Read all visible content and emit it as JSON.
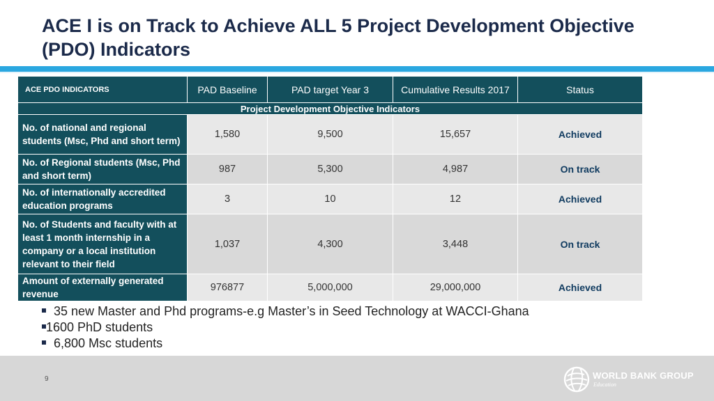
{
  "slide": {
    "title": "ACE I is on Track to Achieve ALL 5 Project Development Objective (PDO) Indicators",
    "page_number": "9"
  },
  "table": {
    "headers": [
      "ACE PDO INDICATORS",
      "PAD Baseline",
      "PAD target Year 3",
      "Cumulative Results 2017",
      "Status"
    ],
    "section_label": "Project Development Objective Indicators",
    "rows": [
      {
        "indicator": "No. of national and regional students (Msc, Phd and short term)",
        "baseline": "1,580",
        "target": "9,500",
        "cumulative": "15,657",
        "status": "Achieved"
      },
      {
        "indicator": "No. of Regional students (Msc, Phd and short term)",
        "baseline": "987",
        "target": "5,300",
        "cumulative": "4,987",
        "status": "On track"
      },
      {
        "indicator": "No. of internationally accredited education programs",
        "baseline": "3",
        "target": "10",
        "cumulative": "12",
        "status": "Achieved"
      },
      {
        "indicator": "No. of Students and faculty with at least 1 month internship in a company or a local institution relevant to their field",
        "baseline": "1,037",
        "target": "4,300",
        "cumulative": "3,448",
        "status": "On track"
      },
      {
        "indicator": " Amount of externally generated revenue",
        "baseline": "976877",
        "target": "5,000,000",
        "cumulative": "29,000,000",
        "status": "Achieved"
      }
    ]
  },
  "bullets": [
    " 35 new Master and Phd programs-e.g Master’s in Seed Technology at WACCI-Ghana",
    "1600 PhD students",
    " 6,800 Msc students"
  ],
  "logo": {
    "name": "WORLD BANK GROUP",
    "subtitle": "Education"
  },
  "colors": {
    "header_teal": "#134f5c",
    "accent_blue": "#2aa7e0",
    "title_navy": "#1b2a4a"
  }
}
